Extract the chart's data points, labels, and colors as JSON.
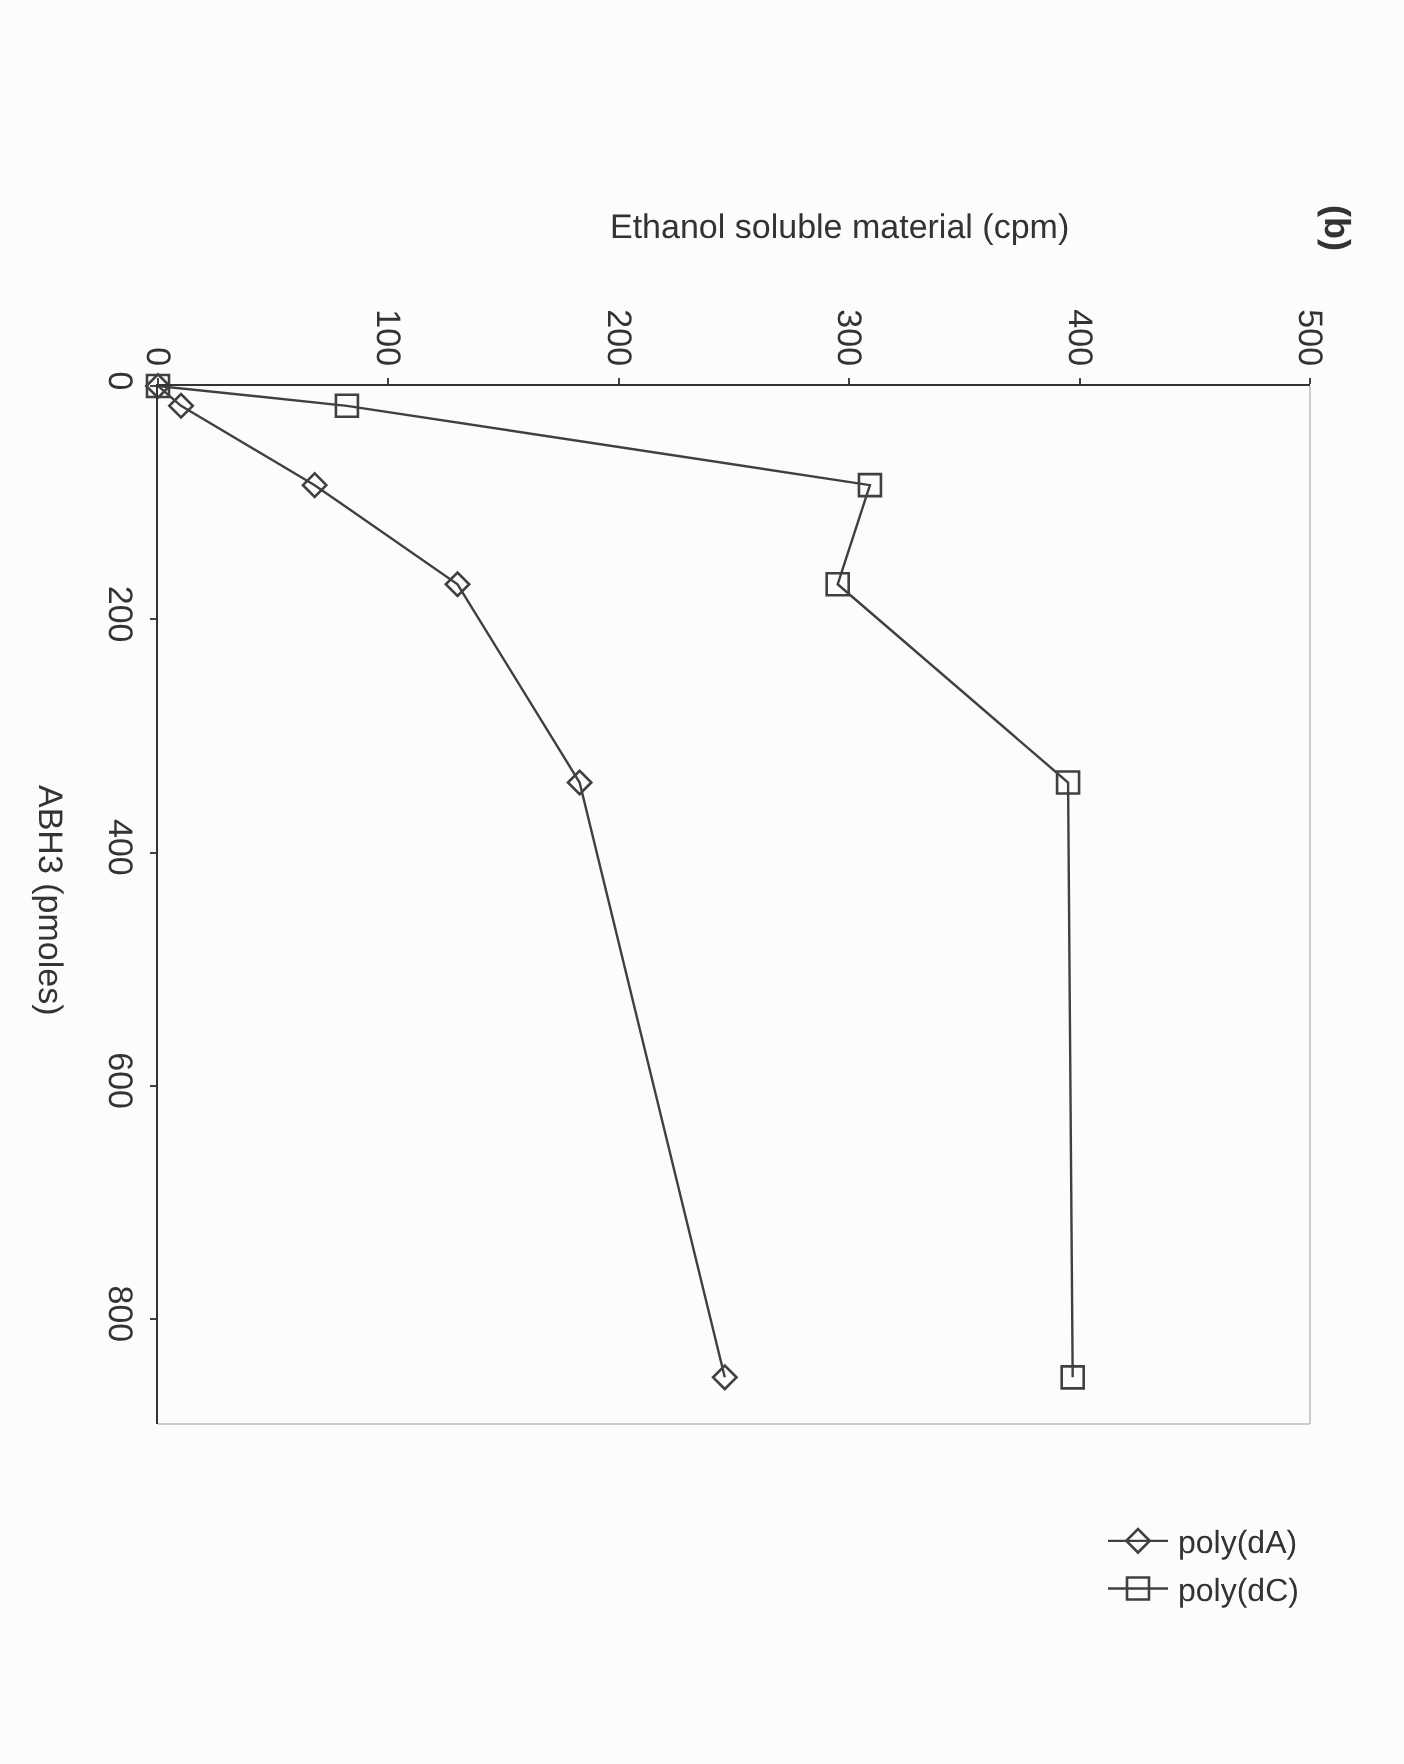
{
  "chart_data": {
    "type": "line",
    "title": "(b)",
    "xlabel": "Ethanol soluble material (cpm)",
    "ylabel": "ABH3 (pmoles)",
    "xlim": [
      0,
      500
    ],
    "xticks": [
      0,
      100,
      200,
      300,
      400,
      500
    ],
    "ylim": [
      890,
      0
    ],
    "yticks": [
      0,
      200,
      400,
      600,
      800
    ],
    "legend": "bottom right",
    "line_style": "solid",
    "series": [
      {
        "name": "poly(dA)",
        "color": "#404040",
        "marker": "diamond",
        "x": [
          0,
          10,
          68,
          130,
          183,
          246
        ],
        "values": [
          0,
          17,
          85,
          170,
          340,
          850
        ]
      },
      {
        "name": "poly(dC)",
        "color": "#404040",
        "marker": "square",
        "x": [
          0,
          82,
          309,
          295,
          395,
          397
        ],
        "values": [
          0,
          17,
          85,
          170,
          340,
          850
        ]
      }
    ]
  }
}
